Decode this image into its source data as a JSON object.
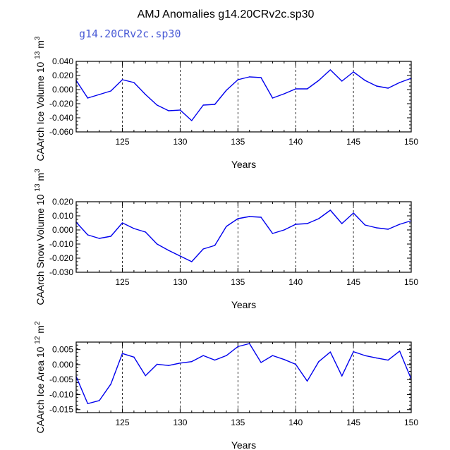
{
  "title": "AMJ Anomalies g14.20CRv2c.sp30",
  "legend_label": "g14.20CRv2c.sp30",
  "colors": {
    "line": "#0000ee",
    "axis": "#000000",
    "grid": "#000000"
  },
  "chart_data": [
    {
      "type": "line",
      "ylabel": "CAArch Ice Volume 10",
      "ylabel_exp": "13",
      "ylabel_unit": "m",
      "ylabel_unit_exp": "3",
      "xlabel": "Years",
      "xlim": [
        121,
        150
      ],
      "ylim": [
        -0.06,
        0.04
      ],
      "yticks": [
        -0.06,
        -0.04,
        -0.02,
        0.0,
        0.02,
        0.04
      ],
      "ytick_labels": [
        "-0.060",
        "-0.040",
        "-0.020",
        "0.000",
        "0.020",
        "0.040"
      ],
      "xticks": [
        125,
        130,
        135,
        140,
        145,
        150
      ],
      "xtick_labels": [
        "125",
        "130",
        "135",
        "140",
        "145",
        "150"
      ],
      "grid_x": [
        125,
        130,
        135,
        140,
        145
      ],
      "x": [
        121,
        122,
        123,
        124,
        125,
        126,
        127,
        128,
        129,
        130,
        131,
        132,
        133,
        134,
        135,
        136,
        137,
        138,
        139,
        140,
        141,
        142,
        143,
        144,
        145,
        146,
        147,
        148,
        149,
        150
      ],
      "y": [
        0.013,
        -0.012,
        -0.007,
        -0.002,
        0.014,
        0.01,
        -0.007,
        -0.022,
        -0.03,
        -0.029,
        -0.044,
        -0.022,
        -0.021,
        -0.001,
        0.014,
        0.018,
        0.017,
        -0.012,
        -0.006,
        0.001,
        0.001,
        0.013,
        0.028,
        0.012,
        0.025,
        0.013,
        0.005,
        0.002,
        0.01,
        0.016
      ]
    },
    {
      "type": "line",
      "ylabel": "CAArch Snow Volume 10",
      "ylabel_exp": "13",
      "ylabel_unit": "m",
      "ylabel_unit_exp": "3",
      "xlabel": "Years",
      "xlim": [
        121,
        150
      ],
      "ylim": [
        -0.03,
        0.02
      ],
      "yticks": [
        -0.03,
        -0.02,
        -0.01,
        0.0,
        0.01,
        0.02
      ],
      "ytick_labels": [
        "-0.030",
        "-0.020",
        "-0.010",
        "0.000",
        "0.010",
        "0.020"
      ],
      "xticks": [
        125,
        130,
        135,
        140,
        145,
        150
      ],
      "xtick_labels": [
        "125",
        "130",
        "135",
        "140",
        "145",
        "150"
      ],
      "grid_x": [
        125,
        130,
        135,
        140,
        145
      ],
      "x": [
        121,
        122,
        123,
        124,
        125,
        126,
        127,
        128,
        129,
        130,
        131,
        132,
        133,
        134,
        135,
        136,
        137,
        138,
        139,
        140,
        141,
        142,
        143,
        144,
        145,
        146,
        147,
        148,
        149,
        150
      ],
      "y": [
        0.0055,
        -0.0035,
        -0.006,
        -0.0045,
        0.005,
        0.001,
        -0.0015,
        -0.01,
        -0.0145,
        -0.0185,
        -0.0225,
        -0.0135,
        -0.011,
        0.0025,
        0.008,
        0.0095,
        0.009,
        -0.0025,
        0.0,
        0.004,
        0.0045,
        0.008,
        0.014,
        0.0045,
        0.012,
        0.0035,
        0.0015,
        0.0005,
        0.004,
        0.0065
      ]
    },
    {
      "type": "line",
      "ylabel": "CAArch Ice Area 10",
      "ylabel_exp": "12",
      "ylabel_unit": "m",
      "ylabel_unit_exp": "2",
      "xlabel": "Years",
      "xlim": [
        121,
        150
      ],
      "ylim": [
        -0.016,
        0.0075
      ],
      "yticks": [
        -0.015,
        -0.01,
        -0.005,
        0.0,
        0.005
      ],
      "ytick_labels": [
        "-0.015",
        "-0.010",
        "-0.005",
        "0.000",
        "0.005"
      ],
      "xticks": [
        125,
        130,
        135,
        140,
        145,
        150
      ],
      "xtick_labels": [
        "125",
        "130",
        "135",
        "140",
        "145",
        "150"
      ],
      "grid_x": [
        125,
        130,
        135,
        140,
        145
      ],
      "x": [
        121,
        122,
        123,
        124,
        125,
        126,
        127,
        128,
        129,
        130,
        131,
        132,
        133,
        134,
        135,
        136,
        137,
        138,
        139,
        140,
        141,
        142,
        143,
        144,
        145,
        146,
        147,
        148,
        149,
        150
      ],
      "y": [
        -0.004,
        -0.013,
        -0.012,
        -0.0065,
        0.0037,
        0.0025,
        -0.0037,
        0.0001,
        -0.0003,
        0.0005,
        0.001,
        0.003,
        0.0015,
        0.003,
        0.006,
        0.007,
        0.0007,
        0.003,
        0.0017,
        0.0001,
        -0.0055,
        0.001,
        0.0042,
        -0.0038,
        0.0043,
        0.003,
        0.0022,
        0.0015,
        0.0045,
        -0.0048
      ]
    }
  ]
}
